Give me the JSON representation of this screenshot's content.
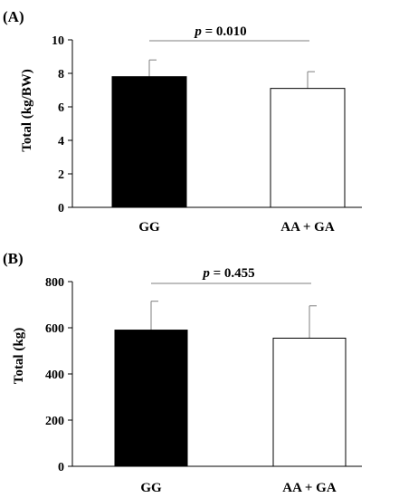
{
  "chart_data": [
    {
      "type": "bar",
      "panel_label": "(A)",
      "categories": [
        "GG",
        "AA + GA"
      ],
      "values": [
        7.8,
        7.1
      ],
      "error_upper": [
        8.8,
        8.1
      ],
      "bar_colors": [
        "#000000",
        "#ffffff"
      ],
      "ylabel": "Total (kg/BW)",
      "ylim": [
        0,
        10
      ],
      "yticks": [
        "0",
        "2",
        "4",
        "6",
        "8",
        "10"
      ],
      "ytick_values": [
        0,
        2,
        4,
        6,
        8,
        10
      ],
      "pvalue": {
        "p": "p",
        "text": " = 0.010"
      },
      "grid": false
    },
    {
      "type": "bar",
      "panel_label": "(B)",
      "categories": [
        "GG",
        "AA + GA"
      ],
      "values": [
        590,
        555
      ],
      "error_upper": [
        715,
        695
      ],
      "bar_colors": [
        "#000000",
        "#ffffff"
      ],
      "ylabel": "Total (kg)",
      "ylim": [
        0,
        800
      ],
      "yticks": [
        "0",
        "200",
        "400",
        "600",
        "800"
      ],
      "ytick_values": [
        0,
        200,
        400,
        600,
        800
      ],
      "pvalue": {
        "p": "p",
        "text": " = 0.455"
      },
      "grid": false
    }
  ]
}
